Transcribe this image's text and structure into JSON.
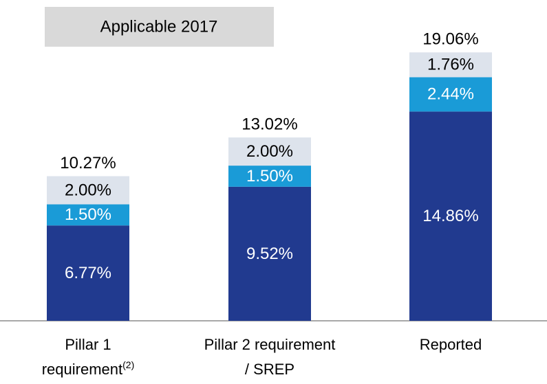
{
  "chart_data": {
    "type": "stacked_bar",
    "annotation": "Applicable 2017",
    "categories": [
      "Pillar 1\nrequirement(2)",
      "Pillar 2 requirement\n/ SREP",
      "Reported"
    ],
    "series": [
      {
        "color": "#213a8f",
        "values": [
          6.77,
          9.52,
          14.86
        ],
        "value_labels": [
          "6.77%",
          "9.52%",
          "14.86%"
        ]
      },
      {
        "color": "#1a9bd7",
        "values": [
          1.5,
          1.5,
          2.44
        ],
        "value_labels": [
          "1.50%",
          "1.50%",
          "2.44%"
        ]
      },
      {
        "color": "#dde3ec",
        "values": [
          2.0,
          2.0,
          1.76
        ],
        "value_labels": [
          "2.00%",
          "2.00%",
          "1.76%"
        ]
      }
    ],
    "totals": [
      10.27,
      13.02,
      19.06
    ],
    "total_labels": [
      "10.27%",
      "13.02%",
      "19.06%"
    ],
    "ylim": [
      0,
      20
    ]
  }
}
